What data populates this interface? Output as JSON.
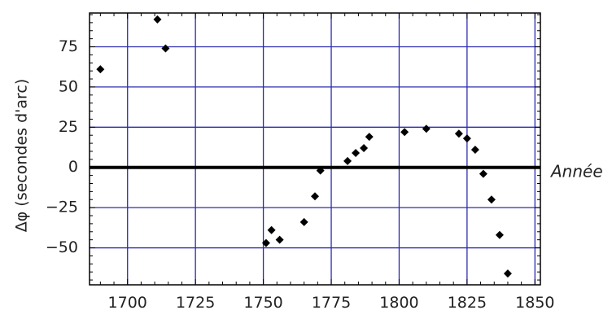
{
  "chart_data": {
    "type": "scatter",
    "title": "",
    "xlabel": "",
    "ylabel": "Δφ (secondes d'arc)",
    "annotation": "Année",
    "xlim": [
      1686,
      1852
    ],
    "ylim": [
      -73,
      96
    ],
    "xticks": [
      1700,
      1725,
      1750,
      1775,
      1800,
      1825,
      1850
    ],
    "yticks": [
      75,
      50,
      25,
      0,
      -25,
      -50
    ],
    "ytick_labels": [
      "75",
      "50",
      "25",
      "0",
      "−25",
      "−50"
    ],
    "xtick_labels": [
      "1700",
      "1725",
      "1750",
      "1775",
      "1800",
      "1825",
      "1850"
    ],
    "grid": true,
    "grid_color": "#2b2bb0",
    "marker_color": "#000000",
    "zero_line": true,
    "series": [
      {
        "marker": "diamond",
        "x": [
          1690,
          1711,
          1714,
          1751,
          1753,
          1756,
          1765,
          1769,
          1771,
          1781,
          1784,
          1787,
          1789,
          1802,
          1810,
          1822,
          1825,
          1828,
          1831,
          1834,
          1837,
          1840
        ],
        "y": [
          61,
          92,
          74,
          -47,
          -39,
          -45,
          -34,
          -18,
          -2,
          4,
          9,
          12,
          19,
          22,
          24,
          21,
          18,
          11,
          -4,
          -20,
          -42,
          -66
        ]
      }
    ]
  }
}
